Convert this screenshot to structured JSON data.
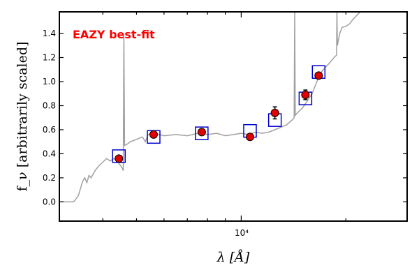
{
  "chart_data": {
    "type": "scatter",
    "xscale": "log",
    "xlim": [
      3000,
      30000
    ],
    "ylim": [
      -0.16,
      1.58
    ],
    "xlabel": "λ [Å]",
    "ylabel": "f_ν [arbitrarily scaled]",
    "x_tick_label": "10⁴",
    "y_ticks": [
      0.0,
      0.2,
      0.4,
      0.6,
      0.8,
      1.0,
      1.2,
      1.4
    ],
    "y_tick_labels": [
      "0.0",
      "0.2",
      "0.4",
      "0.6",
      "0.8",
      "1.0",
      "1.2",
      "1.4"
    ],
    "annotation": "EAZY best-fit",
    "observed": [
      {
        "x": 4450,
        "y": 0.36,
        "err": 0.02
      },
      {
        "x": 5600,
        "y": 0.56,
        "err": 0.02
      },
      {
        "x": 7700,
        "y": 0.58,
        "err": 0.02
      },
      {
        "x": 10600,
        "y": 0.54,
        "err": 0.02
      },
      {
        "x": 12500,
        "y": 0.74,
        "err": 0.05
      },
      {
        "x": 15300,
        "y": 0.89,
        "err": 0.04
      },
      {
        "x": 16700,
        "y": 1.05,
        "err": 0.02
      }
    ],
    "model_photometry": [
      {
        "x": 4450,
        "y": 0.38
      },
      {
        "x": 5600,
        "y": 0.54
      },
      {
        "x": 7700,
        "y": 0.57
      },
      {
        "x": 10600,
        "y": 0.59
      },
      {
        "x": 12500,
        "y": 0.68
      },
      {
        "x": 15300,
        "y": 0.86
      },
      {
        "x": 16700,
        "y": 1.08
      }
    ],
    "template_spectrum": [
      [
        3300,
        0.0
      ],
      [
        3400,
        0.05
      ],
      [
        3500,
        0.17
      ],
      [
        3550,
        0.2
      ],
      [
        3600,
        0.16
      ],
      [
        3650,
        0.22
      ],
      [
        3700,
        0.2
      ],
      [
        3800,
        0.26
      ],
      [
        3900,
        0.3
      ],
      [
        4000,
        0.33
      ],
      [
        4100,
        0.36
      ],
      [
        4200,
        0.34
      ],
      [
        4300,
        0.36
      ],
      [
        4400,
        0.34
      ],
      [
        4500,
        0.3
      ],
      [
        4550,
        0.28
      ],
      [
        4580,
        0.26
      ],
      [
        4600,
        1.38
      ],
      [
        4620,
        0.47
      ],
      [
        4700,
        0.48
      ],
      [
        4800,
        0.5
      ],
      [
        5000,
        0.52
      ],
      [
        5200,
        0.54
      ],
      [
        5300,
        0.5
      ],
      [
        5400,
        0.56
      ],
      [
        5600,
        0.58
      ],
      [
        5800,
        0.56
      ],
      [
        6000,
        0.55
      ],
      [
        6500,
        0.56
      ],
      [
        7000,
        0.55
      ],
      [
        7500,
        0.57
      ],
      [
        8000,
        0.56
      ],
      [
        8500,
        0.57
      ],
      [
        9000,
        0.55
      ],
      [
        9500,
        0.56
      ],
      [
        10000,
        0.57
      ],
      [
        10500,
        0.56
      ],
      [
        11000,
        0.58
      ],
      [
        11500,
        0.57
      ],
      [
        12000,
        0.58
      ],
      [
        12500,
        0.6
      ],
      [
        13000,
        0.62
      ],
      [
        13500,
        0.64
      ],
      [
        14000,
        0.68
      ],
      [
        14200,
        0.7
      ],
      [
        14250,
        1.58
      ],
      [
        14300,
        0.72
      ],
      [
        14500,
        0.74
      ],
      [
        15000,
        0.78
      ],
      [
        15500,
        0.84
      ],
      [
        16000,
        0.9
      ],
      [
        16500,
        1.0
      ],
      [
        17000,
        1.08
      ],
      [
        17500,
        1.12
      ],
      [
        18000,
        1.16
      ],
      [
        18500,
        1.2
      ],
      [
        18800,
        1.22
      ],
      [
        18850,
        1.58
      ],
      [
        18900,
        1.3
      ],
      [
        19200,
        1.4
      ],
      [
        19500,
        1.45
      ],
      [
        20000,
        1.46
      ],
      [
        20500,
        1.48
      ],
      [
        21000,
        1.52
      ],
      [
        22000,
        1.58
      ]
    ]
  }
}
